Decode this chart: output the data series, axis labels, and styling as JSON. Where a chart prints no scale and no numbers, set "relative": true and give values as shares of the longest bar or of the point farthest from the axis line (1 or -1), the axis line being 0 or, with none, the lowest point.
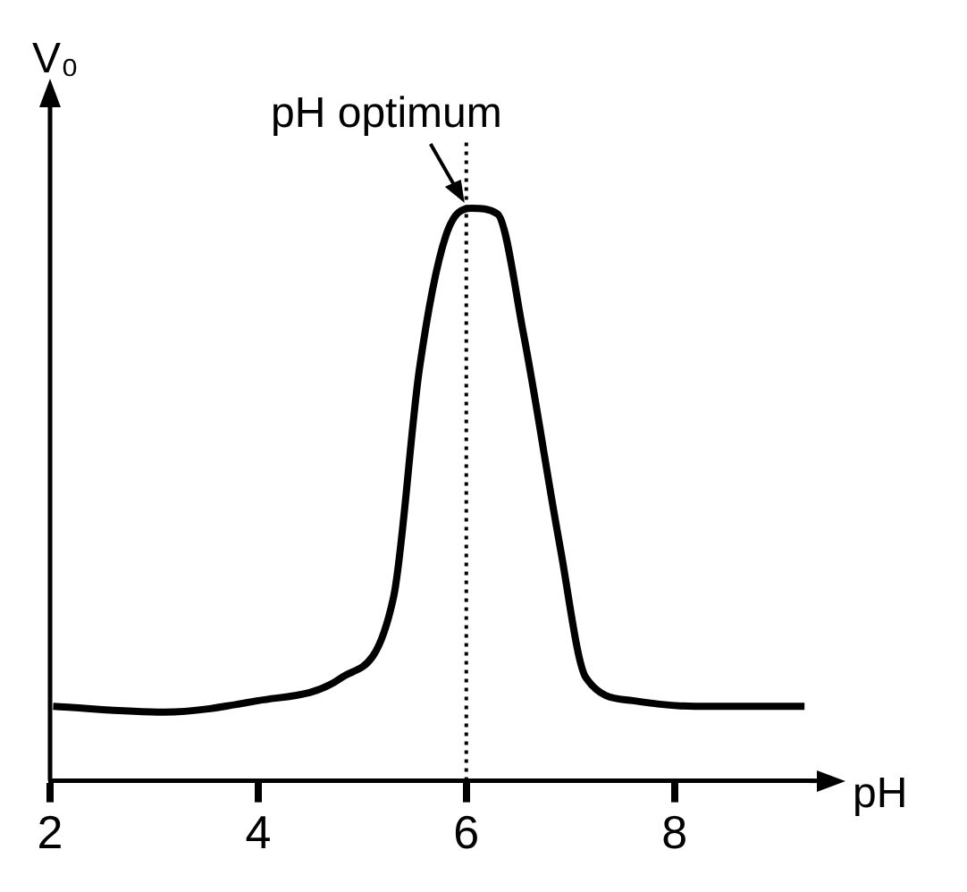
{
  "chart_data": {
    "type": "line",
    "xlabel": "pH",
    "ylabel": "V₀",
    "relative": true,
    "x": [
      2.03,
      3.1,
      4.0,
      4.8,
      5.3,
      5.55,
      5.8,
      6.05,
      6.3,
      6.55,
      6.9,
      7.15,
      7.6,
      8.2,
      9.25
    ],
    "values": [
      0.13,
      0.12,
      0.14,
      0.18,
      0.32,
      0.72,
      0.95,
      1,
      0.99,
      0.78,
      0.41,
      0.18,
      0.14,
      0.13,
      0.13
    ],
    "color": "#000000",
    "marker": "none",
    "line_style": "solid",
    "grid": false,
    "legend": false,
    "xlim": [
      2,
      9.3
    ],
    "xticks": [
      2,
      4,
      6,
      8
    ],
    "ref_lines": [
      {
        "axis": "x",
        "value": 6,
        "line_style": "dotted",
        "color": "#000000"
      }
    ],
    "annotations": [
      {
        "text": "pH optimum",
        "x": 6,
        "y": 1
      }
    ]
  }
}
